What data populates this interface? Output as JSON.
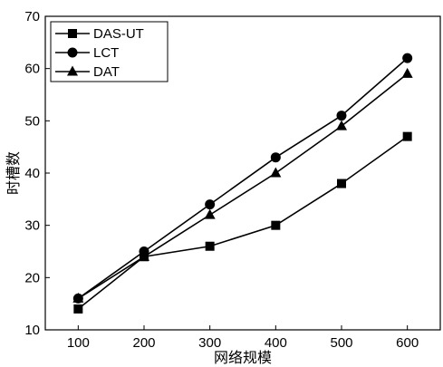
{
  "chart_data": {
    "type": "line",
    "x": [
      100,
      200,
      300,
      400,
      500,
      600
    ],
    "series": [
      {
        "name": "DAS-UT",
        "marker": "square",
        "values": [
          14,
          24,
          26,
          30,
          38,
          47
        ]
      },
      {
        "name": "LCT",
        "marker": "circle",
        "values": [
          16,
          25,
          34,
          43,
          51,
          62
        ]
      },
      {
        "name": "DAT",
        "marker": "triangle",
        "values": [
          16,
          24,
          32,
          40,
          49,
          59
        ]
      }
    ],
    "xlabel": "网络规模",
    "ylabel": "时槽数",
    "xlim": [
      50,
      650
    ],
    "ylim": [
      10,
      70
    ],
    "xticks": [
      100,
      200,
      300,
      400,
      500,
      600
    ],
    "yticks": [
      10,
      20,
      30,
      40,
      50,
      60,
      70
    ],
    "grid": false,
    "legend_position": "top-left",
    "line_color": "#000000"
  }
}
